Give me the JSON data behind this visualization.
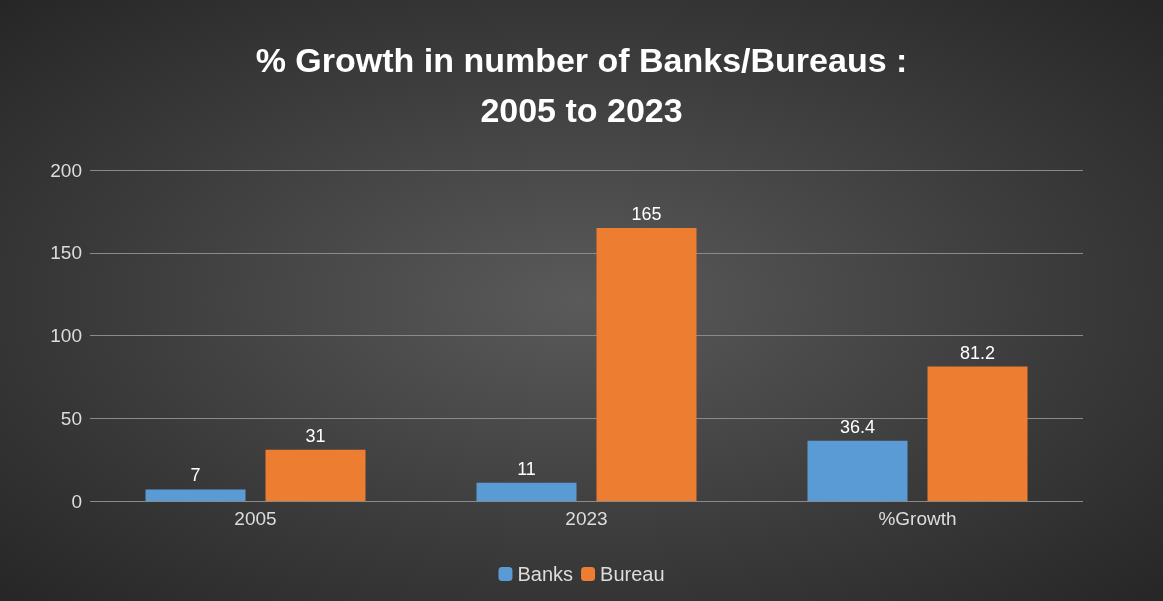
{
  "chart_data": {
    "type": "bar",
    "title": "% Growth in number of Banks/Bureaus :\n2005 to 2023",
    "categories": [
      "2005",
      "2023",
      "%Growth"
    ],
    "series": [
      {
        "name": "Banks",
        "color": "#5b9bd5",
        "values": [
          7,
          11,
          36.4
        ]
      },
      {
        "name": "Bureau",
        "color": "#ed7d31",
        "values": [
          31,
          165,
          81.2
        ]
      }
    ],
    "ylim": [
      0,
      200
    ],
    "yticks": [
      0,
      50,
      100,
      150,
      200
    ],
    "grid": "y",
    "data_labels": true,
    "legend": "bottom"
  }
}
